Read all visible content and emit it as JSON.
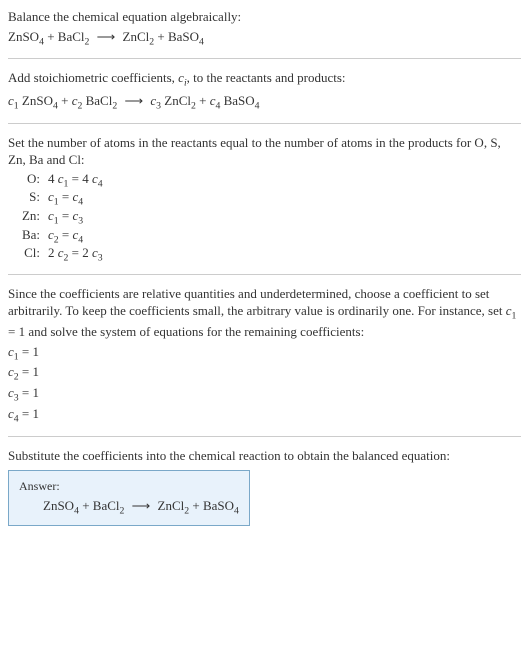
{
  "sections": {
    "intro": {
      "line1": "Balance the chemical equation algebraically:"
    },
    "stoich": {
      "line1_a": "Add stoichiometric coefficients, ",
      "line1_b": "c",
      "line1_c": "i",
      "line1_d": ", to the reactants and products:"
    },
    "atoms": {
      "line1": "Set the number of atoms in the reactants equal to the number of atoms in the products for O, S, Zn, Ba and Cl:",
      "rows": [
        {
          "el": "O:",
          "eq_a": "4 ",
          "eq_b": " = 4 "
        },
        {
          "el": "S:",
          "eq_a": "",
          "eq_b": " = "
        },
        {
          "el": "Zn:",
          "eq_a": "",
          "eq_b": " = "
        },
        {
          "el": "Ba:",
          "eq_a": "",
          "eq_b": " = "
        },
        {
          "el": "Cl:",
          "eq_a": "2 ",
          "eq_b": " = 2 "
        }
      ]
    },
    "underdet": {
      "line1_a": "Since the coefficients are relative quantities and underdetermined, choose a coefficient to set arbitrarily. To keep the coefficients small, the arbitrary value is ordinarily one. For instance, set ",
      "line1_b": " = 1 and solve the system of equations for the remaining coefficients:",
      "coeffs": [
        {
          "c": "c",
          "s": "1",
          "v": " = 1"
        },
        {
          "c": "c",
          "s": "2",
          "v": " = 1"
        },
        {
          "c": "c",
          "s": "3",
          "v": " = 1"
        },
        {
          "c": "c",
          "s": "4",
          "v": " = 1"
        }
      ]
    },
    "subst": {
      "line1": "Substitute the coefficients into the chemical reaction to obtain the balanced equation:"
    },
    "answer": {
      "label": "Answer:"
    }
  },
  "species": {
    "ZnSO4": {
      "t1": "ZnSO",
      "s1": "4"
    },
    "BaCl2": {
      "t1": "BaCl",
      "s1": "2"
    },
    "ZnCl2": {
      "t1": "ZnCl",
      "s1": "2"
    },
    "BaSO4": {
      "t1": "BaSO",
      "s1": "4"
    }
  },
  "ci": {
    "c": "c",
    "s1": "1",
    "s2": "2",
    "s3": "3",
    "s4": "4"
  },
  "plus": " + ",
  "arrow": "⟶",
  "colors": {
    "text": "#333333",
    "rule": "#cccccc",
    "answer_border": "#7aa8c8",
    "answer_bg": "#e8f2fb"
  },
  "fontsize_body_pt": 10,
  "fontsize_sub_ratio": 0.75
}
